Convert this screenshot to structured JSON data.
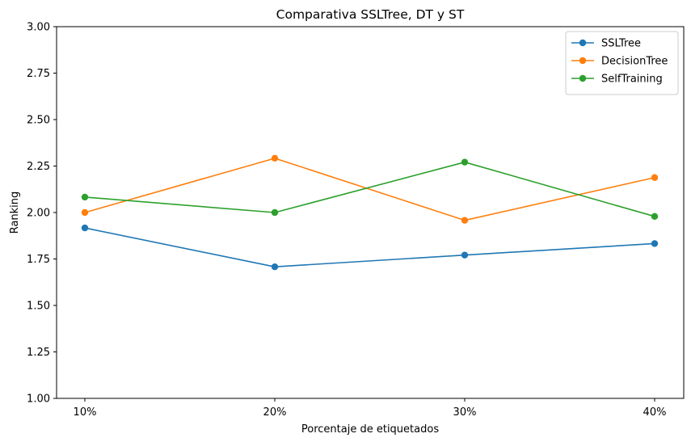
{
  "chart_data": {
    "type": "line",
    "title": "Comparativa SSLTree, DT y ST",
    "xlabel": "Porcentaje de etiquetados",
    "ylabel": "Ranking",
    "categories": [
      "10%",
      "20%",
      "30%",
      "40%"
    ],
    "ylim": [
      1.0,
      3.0
    ],
    "yticks": [
      "1.00",
      "1.25",
      "1.50",
      "1.75",
      "2.00",
      "2.25",
      "2.50",
      "2.75",
      "3.00"
    ],
    "grid": false,
    "legend_position": "top-right",
    "series": [
      {
        "name": "SSLTree",
        "color": "#1f77b4",
        "values": [
          1.917,
          1.708,
          1.771,
          1.833
        ]
      },
      {
        "name": "DecisionTree",
        "color": "#ff7f0e",
        "values": [
          2.0,
          2.292,
          1.958,
          2.188
        ]
      },
      {
        "name": "SelfTraining",
        "color": "#2ca02c",
        "values": [
          2.083,
          2.0,
          2.271,
          1.979
        ]
      }
    ]
  }
}
